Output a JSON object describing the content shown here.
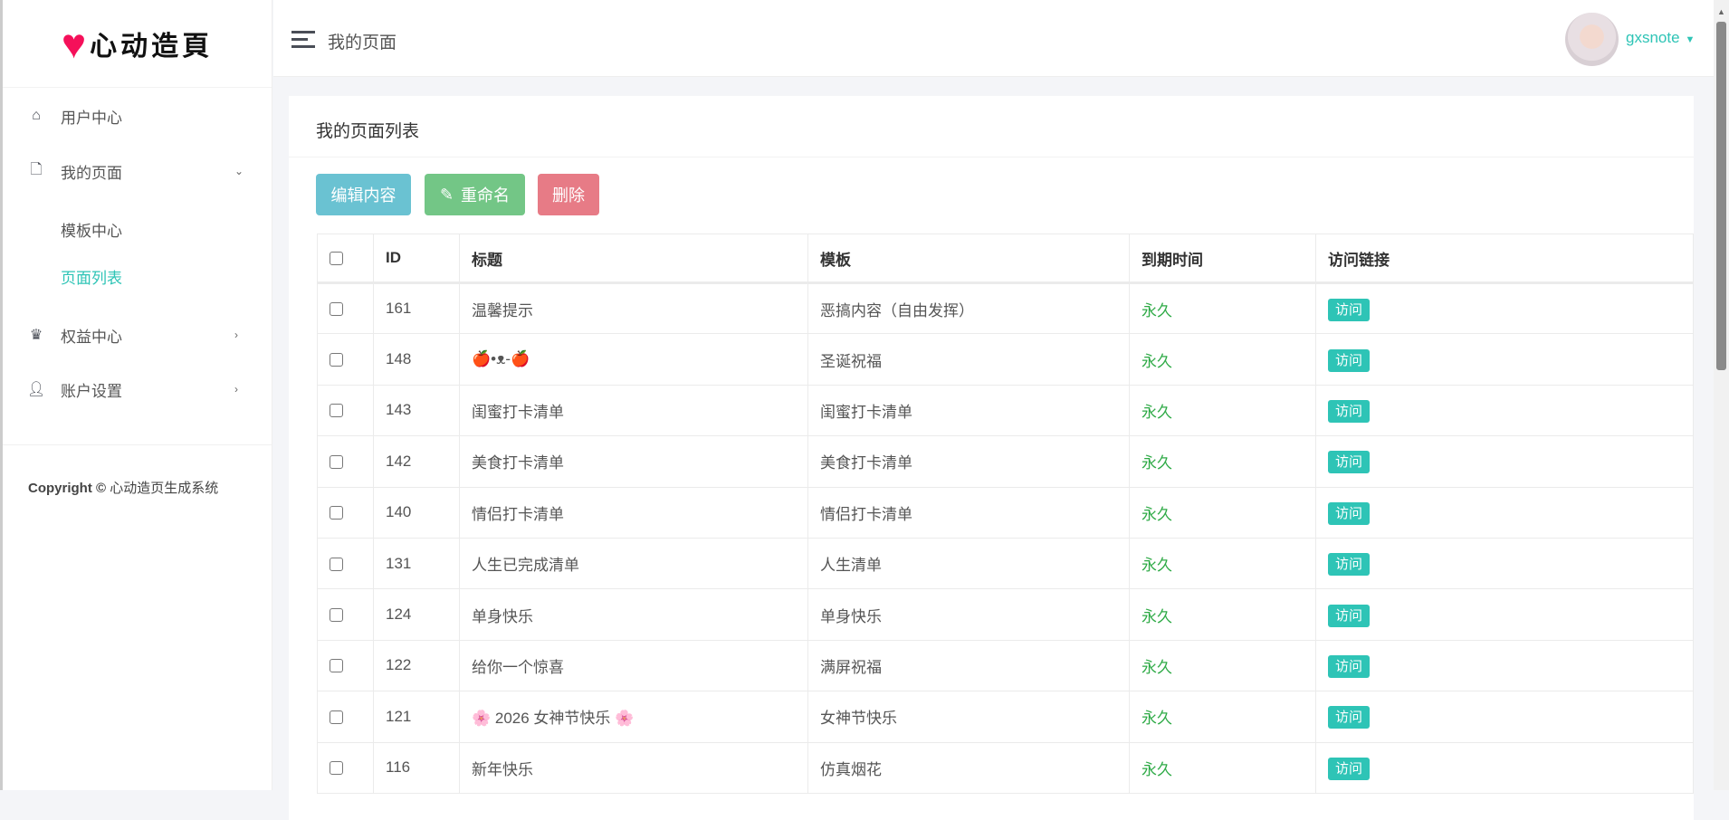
{
  "logo": {
    "text": "心动造頁"
  },
  "sidebar": {
    "items": [
      {
        "label": "用户中心",
        "icon": "home-icon"
      },
      {
        "label": "我的页面",
        "icon": "file-icon"
      },
      {
        "label": "模板中心"
      },
      {
        "label": "页面列表",
        "active": true
      },
      {
        "label": "权益中心",
        "icon": "crown-icon"
      },
      {
        "label": "账户设置",
        "icon": "user-icon"
      }
    ],
    "copyright_label": "Copyright ©",
    "copyright_text": "心动造页生成系统"
  },
  "header": {
    "title": "我的页面",
    "username": "gxsnote"
  },
  "card": {
    "title": "我的页面列表",
    "buttons": {
      "edit": "编辑内容",
      "rename": "重命名",
      "delete": "删除"
    }
  },
  "table": {
    "columns": [
      "ID",
      "标题",
      "模板",
      "到期时间",
      "访问链接"
    ],
    "rows": [
      {
        "id": "161",
        "title": "温馨提示",
        "template": "恶搞内容（自由发挥）",
        "expire": "永久",
        "link": "访问"
      },
      {
        "id": "148",
        "title": "🍎•ᴥ-🍎",
        "template": "圣诞祝福",
        "expire": "永久",
        "link": "访问"
      },
      {
        "id": "143",
        "title": "闺蜜打卡清单",
        "template": "闺蜜打卡清单",
        "expire": "永久",
        "link": "访问"
      },
      {
        "id": "142",
        "title": "美食打卡清单",
        "template": "美食打卡清单",
        "expire": "永久",
        "link": "访问"
      },
      {
        "id": "140",
        "title": "情侣打卡清单",
        "template": "情侣打卡清单",
        "expire": "永久",
        "link": "访问"
      },
      {
        "id": "131",
        "title": "人生已完成清单",
        "template": "人生清单",
        "expire": "永久",
        "link": "访问"
      },
      {
        "id": "124",
        "title": "单身快乐",
        "template": "单身快乐",
        "expire": "永久",
        "link": "访问"
      },
      {
        "id": "122",
        "title": "给你一个惊喜",
        "template": "满屏祝福",
        "expire": "永久",
        "link": "访问"
      },
      {
        "id": "121",
        "title": "🌸 2026 女神节快乐 🌸",
        "template": "女神节快乐",
        "expire": "永久",
        "link": "访问"
      },
      {
        "id": "116",
        "title": "新年快乐",
        "template": "仿真烟花",
        "expire": "永久",
        "link": "访问"
      }
    ]
  },
  "colors": {
    "accent": "#2ec4b6",
    "info": "#6ac2d2",
    "success": "#73c686",
    "danger": "#e77b86",
    "forever": "#2eaa46"
  }
}
